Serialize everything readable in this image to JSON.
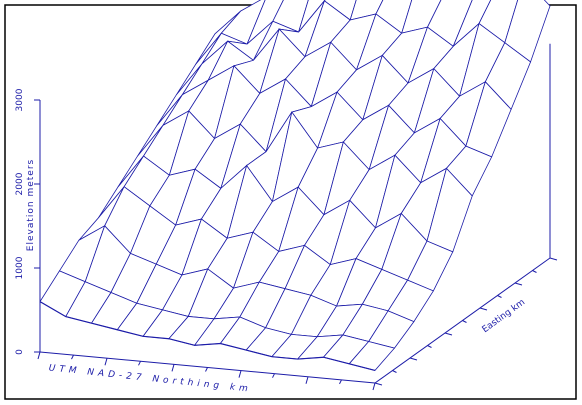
{
  "chart_data": {
    "type": "surface",
    "z_label": "Elevation meters",
    "x_label": "UTM NAD-27 Northing km",
    "y_label": "Easting km",
    "color": "#1c1ca8",
    "zlim": [
      0,
      3000
    ],
    "zticks": [
      0,
      1000,
      2000,
      3000
    ],
    "z": [
      [
        600,
        450,
        400,
        350,
        300,
        300,
        250,
        300,
        250,
        200,
        200,
        250,
        200,
        150
      ],
      [
        800,
        700,
        600,
        500,
        450,
        400,
        400,
        450,
        350,
        300,
        300,
        350,
        300,
        250
      ],
      [
        1000,
        1200,
        900,
        800,
        700,
        800,
        600,
        700,
        650,
        600,
        500,
        550,
        500,
        400
      ],
      [
        1100,
        1500,
        1300,
        1100,
        1200,
        1000,
        1100,
        900,
        1000,
        800,
        900,
        800,
        700,
        600
      ],
      [
        1300,
        1700,
        1500,
        1600,
        1400,
        1700,
        1300,
        1500,
        1200,
        1400,
        1100,
        1300,
        1000,
        900
      ],
      [
        1500,
        1900,
        2100,
        1800,
        2000,
        1700,
        2200,
        1800,
        1900,
        1600,
        1800,
        1500,
        1700,
        1400
      ],
      [
        1700,
        2100,
        2300,
        2500,
        2200,
        2400,
        2100,
        2300,
        2000,
        2200,
        1900,
        2100,
        1800,
        1700
      ],
      [
        1900,
        2300,
        2600,
        2400,
        2800,
        2500,
        2700,
        2400,
        2600,
        2300,
        2500,
        2200,
        2400,
        2100
      ],
      [
        2100,
        2500,
        2400,
        2700,
        2600,
        3000,
        2800,
        2900,
        2700,
        2800,
        2600,
        2900,
        2700,
        2500
      ],
      [
        2300,
        2600,
        2800,
        3000,
        3200,
        3100,
        3400,
        3200,
        3300,
        3100,
        3000,
        3200,
        3300,
        3000
      ]
    ]
  }
}
